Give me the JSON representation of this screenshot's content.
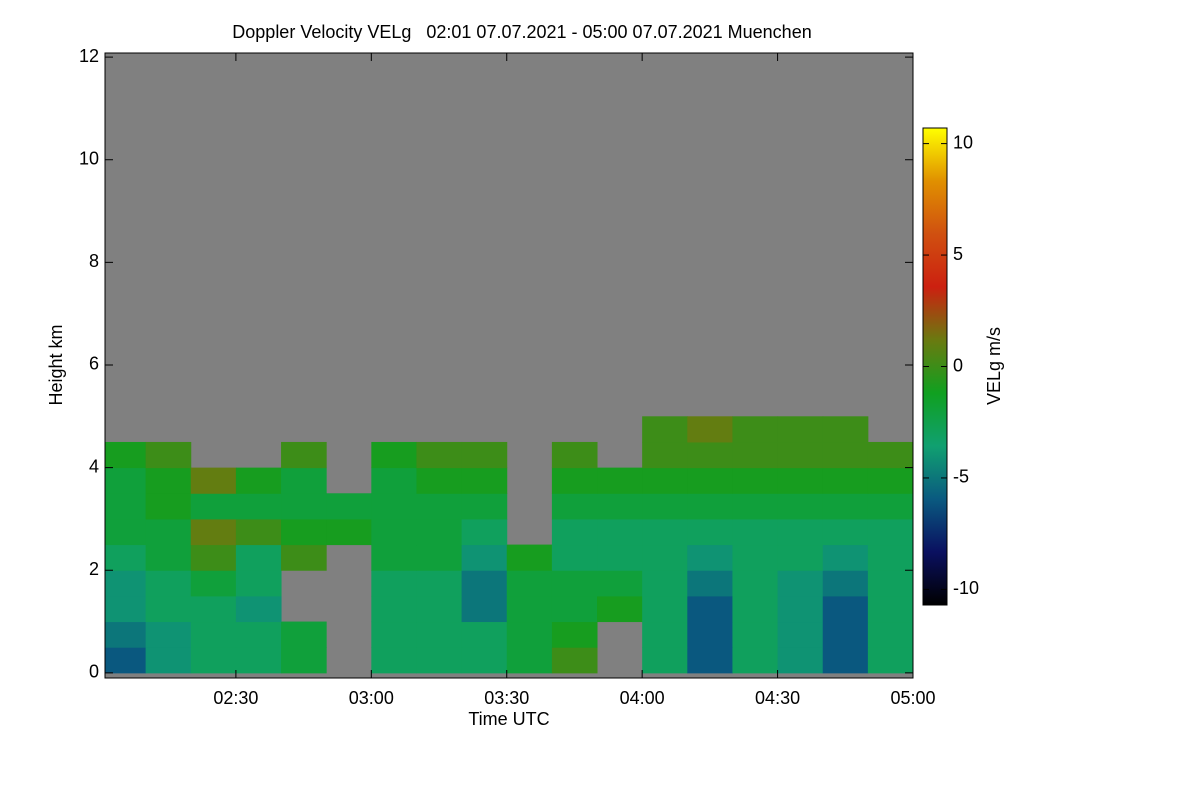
{
  "chart_data": {
    "type": "heatmap",
    "title": "Doppler Velocity VELg   02:01 07.07.2021 - 05:00 07.07.2021 Muenchen",
    "xlabel": "Time UTC",
    "ylabel": "Height km",
    "colorbar_label": "VELg m/s",
    "xlim": [
      2.0167,
      5.0
    ],
    "xticks": [
      {
        "value": 2.5,
        "label": "02:30"
      },
      {
        "value": 3.0,
        "label": "03:00"
      },
      {
        "value": 3.5,
        "label": "03:30"
      },
      {
        "value": 4.0,
        "label": "04:00"
      },
      {
        "value": 4.5,
        "label": "04:30"
      },
      {
        "value": 5.0,
        "label": "05:00"
      }
    ],
    "ylim": [
      -0.1,
      12.08
    ],
    "yticks": [
      0,
      2,
      4,
      6,
      8,
      10,
      12
    ],
    "clim": [
      -10.7,
      10.7
    ],
    "cticks": [
      -10,
      -5,
      0,
      5,
      10
    ],
    "colormap": [
      "#000000",
      "#0a1060",
      "#0a5a80",
      "#10a070",
      "#10a020",
      "#6a7a10",
      "#cc2010",
      "#d05010",
      "#e09000",
      "#ffff00"
    ],
    "nodata_color": "#808080",
    "xbins": [
      2.0167,
      2.1667,
      2.3333,
      2.5,
      2.6667,
      2.8333,
      3.0,
      3.1667,
      3.3333,
      3.5,
      3.6667,
      3.8333,
      4.0,
      4.1667,
      4.3333,
      4.5,
      4.6667,
      4.8333,
      5.0
    ],
    "ybins": [
      0,
      0.5,
      1,
      1.5,
      2,
      2.5,
      3,
      3.5,
      4,
      4.5,
      5
    ],
    "values": [
      [
        -6,
        -4,
        -3,
        -3,
        -2,
        null,
        -3,
        -3,
        -3,
        -2,
        0,
        null,
        -3,
        -6,
        -3,
        -4,
        -6,
        -3
      ],
      [
        -5,
        -4,
        -3,
        -3,
        -2,
        null,
        -3,
        -3,
        -3,
        -2,
        -1,
        null,
        -3,
        -6,
        -3,
        -4,
        -6,
        -3
      ],
      [
        -4,
        -3,
        -3,
        -4,
        null,
        null,
        -3,
        -3,
        -5,
        -2,
        -2,
        -1,
        -3,
        -6,
        -3,
        -4,
        -6,
        -3
      ],
      [
        -4,
        -3,
        -2,
        -3,
        null,
        null,
        -3,
        -3,
        -5,
        -2,
        -2,
        -2,
        -3,
        -5,
        -3,
        -4,
        -5,
        -3
      ],
      [
        -3,
        -2,
        0,
        -3,
        0,
        null,
        -2,
        -2,
        -4,
        -1,
        -3,
        -3,
        -3,
        -4,
        -3,
        -3,
        -4,
        -3
      ],
      [
        -2,
        -2,
        1,
        0,
        -1,
        -1,
        -2,
        -2,
        -3,
        null,
        -3,
        -3,
        -3,
        -3,
        -3,
        -3,
        -3,
        -3
      ],
      [
        -2,
        -1,
        -2,
        -2,
        -2,
        -2,
        -2,
        -2,
        -2,
        null,
        -2,
        -2,
        -2,
        -2,
        -2,
        -2,
        -2,
        -2
      ],
      [
        -2,
        -1,
        1,
        -1,
        -2,
        null,
        -2,
        -1,
        -1,
        null,
        -1,
        -1,
        -1,
        -1,
        -1,
        -1,
        -1,
        -1
      ],
      [
        -1,
        0,
        null,
        null,
        0,
        null,
        -1,
        0,
        0,
        null,
        0,
        null,
        0,
        0,
        0,
        0,
        0,
        0
      ],
      [
        null,
        null,
        null,
        null,
        null,
        null,
        null,
        null,
        null,
        null,
        null,
        null,
        0,
        1,
        0,
        0,
        0,
        null
      ]
    ]
  }
}
